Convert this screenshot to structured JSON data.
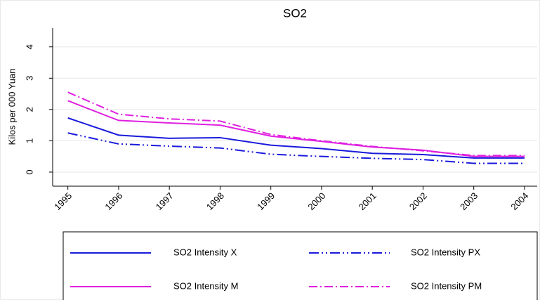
{
  "chart_data": {
    "type": "line",
    "title": "SO2",
    "y_label": "Kilos per 000 Yuan",
    "x": [
      1995,
      1996,
      1997,
      1998,
      1999,
      2000,
      2001,
      2002,
      2003,
      2004
    ],
    "xlim": [
      1994.7,
      2004.25
    ],
    "xticks": [
      1995,
      1996,
      1997,
      1998,
      1999,
      2000,
      2001,
      2002,
      2003,
      2004
    ],
    "ylim": [
      -0.45,
      4.6
    ],
    "yticks": [
      0,
      1,
      2,
      3,
      4
    ],
    "grid": true,
    "series": [
      {
        "name": "SO2 Intensity X",
        "color": "#1a1adc",
        "line_style": "solid",
        "values": [
          1.73,
          1.18,
          1.08,
          1.1,
          0.86,
          0.75,
          0.6,
          0.56,
          0.45,
          0.45
        ]
      },
      {
        "name": "SO2 Intensity PX",
        "color": "#1a1adc",
        "line_style": "dash-dot-dot",
        "values": [
          1.25,
          0.9,
          0.83,
          0.77,
          0.57,
          0.5,
          0.44,
          0.4,
          0.28,
          0.28
        ]
      },
      {
        "name": "SO2 Intensity M",
        "color": "#e020e0",
        "line_style": "solid",
        "values": [
          2.28,
          1.65,
          1.57,
          1.5,
          1.15,
          0.98,
          0.8,
          0.7,
          0.5,
          0.5
        ]
      },
      {
        "name": "SO2 Intensity PM",
        "color": "#e020e0",
        "line_style": "dash-dot",
        "values": [
          2.55,
          1.85,
          1.7,
          1.63,
          1.2,
          1.0,
          0.82,
          0.68,
          0.53,
          0.53
        ]
      }
    ]
  }
}
